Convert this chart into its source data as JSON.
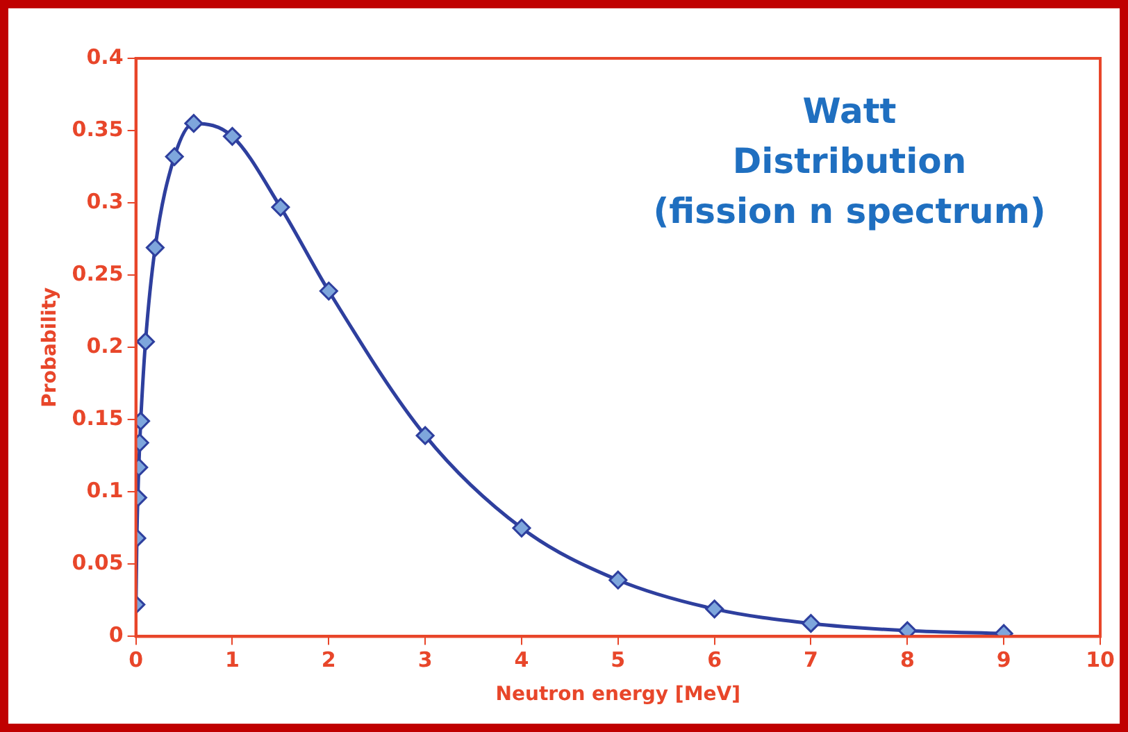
{
  "chart_data": {
    "type": "line",
    "xlabel": "Neutron energy [MeV]",
    "ylabel": "Probability",
    "annotations": [
      "Watt",
      "Distribution",
      "(fission n spectrum)"
    ],
    "series": [
      {
        "color": "#2e3f9e",
        "x": [
          0.001,
          0.01,
          0.02,
          0.03,
          0.04,
          0.05,
          0.1,
          0.2,
          0.4,
          0.6,
          1,
          1.5,
          2,
          3,
          4,
          5,
          6,
          7,
          8,
          9
        ],
        "values": [
          0.022,
          0.068,
          0.096,
          0.117,
          0.134,
          0.149,
          0.204,
          0.269,
          0.332,
          0.355,
          0.346,
          0.297,
          0.239,
          0.139,
          0.075,
          0.039,
          0.019,
          0.009,
          0.004,
          0.002
        ]
      }
    ],
    "xlim": [
      0,
      10
    ],
    "xticks": [
      0,
      1,
      2,
      3,
      4,
      5,
      6,
      7,
      8,
      9,
      10
    ],
    "ylim": [
      0,
      0.4
    ],
    "yticks": [
      0,
      0.05,
      0.1,
      0.15,
      0.2,
      0.25,
      0.3,
      0.35,
      0.4
    ],
    "grid": false,
    "legend": false,
    "marker": "diamond",
    "line_style": "solid"
  }
}
